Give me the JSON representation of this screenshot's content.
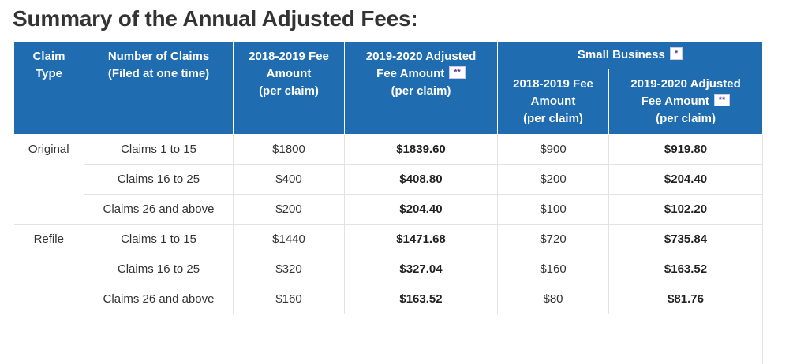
{
  "title": "Summary of the Annual Adjusted Fees:",
  "headers": {
    "claim_type": [
      "Claim",
      "Type"
    ],
    "num_claims": [
      "Number of Claims",
      "(Filed at one time)"
    ],
    "fee_2018": [
      "2018-2019 Fee",
      "Amount",
      "(per claim)"
    ],
    "fee_2019": [
      "2019-2020 Adjusted",
      "Fee Amount",
      "(per claim)"
    ],
    "fee_2019_note": "**",
    "small_business": "Small Business",
    "small_business_note": "*",
    "sb_fee_2018": [
      "2018-2019 Fee",
      "Amount",
      "(per claim)"
    ],
    "sb_fee_2019": [
      "2019-2020 Adjusted",
      "Fee Amount",
      "(per claim)"
    ],
    "sb_fee_2019_note": "**"
  },
  "groups": [
    {
      "type": "Original",
      "rows": [
        {
          "claims": "Claims 1 to 15",
          "fee_2018": "$1800",
          "fee_2019": "$1839.60",
          "sb_2018": "$900",
          "sb_2019": "$919.80"
        },
        {
          "claims": "Claims 16 to 25",
          "fee_2018": "$400",
          "fee_2019": "$408.80",
          "sb_2018": "$200",
          "sb_2019": "$204.40"
        },
        {
          "claims": "Claims 26 and above",
          "fee_2018": "$200",
          "fee_2019": "$204.40",
          "sb_2018": "$100",
          "sb_2019": "$102.20"
        }
      ]
    },
    {
      "type": "Refile",
      "rows": [
        {
          "claims": "Claims 1 to 15",
          "fee_2018": "$1440",
          "fee_2019": "$1471.68",
          "sb_2018": "$720",
          "sb_2019": "$735.84"
        },
        {
          "claims": "Claims 16 to 25",
          "fee_2018": "$320",
          "fee_2019": "$327.04",
          "sb_2018": "$160",
          "sb_2019": "$163.52"
        },
        {
          "claims": "Claims 26 and above",
          "fee_2018": "$160",
          "fee_2019": "$163.52",
          "sb_2018": "$80",
          "sb_2019": "$81.76"
        }
      ]
    }
  ],
  "colors": {
    "header_bg": "#1f6cb0",
    "header_text": "#ffffff",
    "note_text": "#5b3fa8"
  }
}
